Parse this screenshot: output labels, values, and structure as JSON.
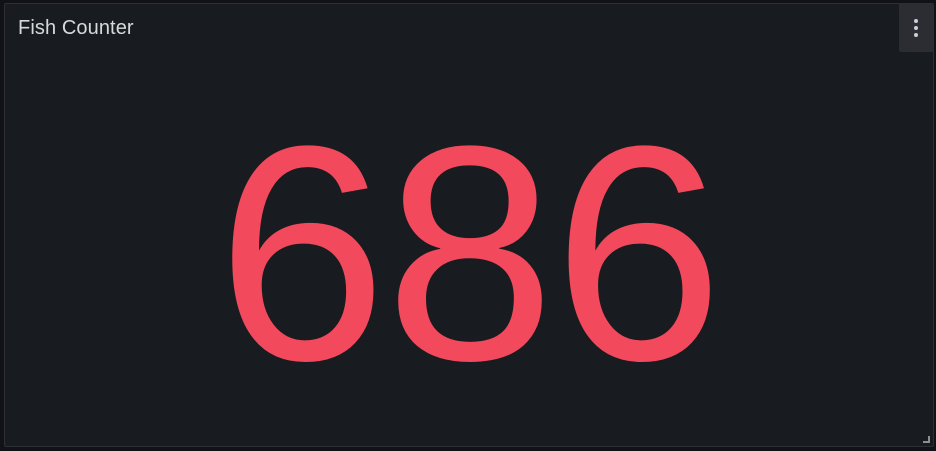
{
  "panel": {
    "title": "Fish Counter",
    "value": "686",
    "value_color": "#f2495c",
    "background": "#181b1f"
  },
  "icons": {
    "menu": "kebab-menu-icon",
    "resize": "resize-handle-icon"
  }
}
